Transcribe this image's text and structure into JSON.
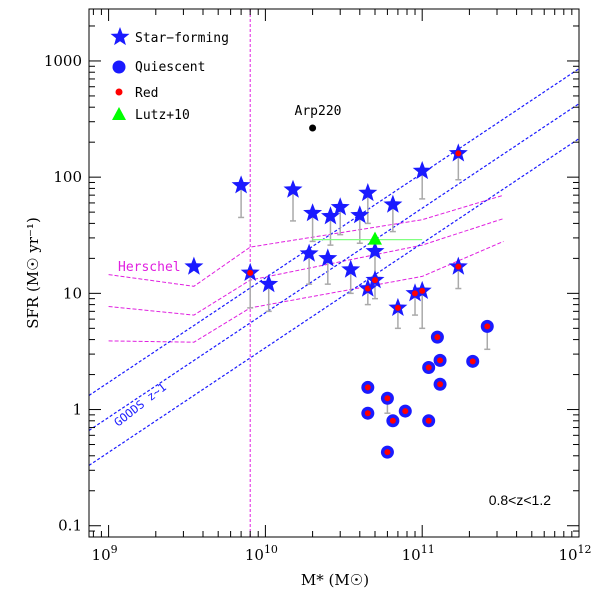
{
  "chart_data": {
    "type": "scatter",
    "xscale": "log",
    "yscale": "log",
    "xlim": [
      750000000.0,
      1000000000000.0
    ],
    "ylim": [
      0.08,
      2800
    ],
    "xlabel": "M* (M☉)",
    "ylabel": "SFR (M☉ yr⁻¹)",
    "x_ticks": [
      {
        "value": 1000000000.0,
        "base": "10",
        "exp": "9"
      },
      {
        "value": 10000000000.0,
        "base": "10",
        "exp": "10"
      },
      {
        "value": 100000000000.0,
        "base": "10",
        "exp": "11"
      },
      {
        "value": 1000000000000.0,
        "base": "10",
        "exp": "12"
      }
    ],
    "y_ticks": [
      {
        "value": 0.1,
        "label": "0.1"
      },
      {
        "value": 1,
        "label": "1"
      },
      {
        "value": 10,
        "label": "10"
      },
      {
        "value": 100,
        "label": "100"
      },
      {
        "value": 1000,
        "label": "1000"
      }
    ],
    "redshift_label": "0.8<z<1.2",
    "legend": [
      {
        "label": "Star−forming",
        "marker": "star",
        "color": "#1a1aff"
      },
      {
        "label": "Quiescent",
        "marker": "circle",
        "color": "#1a1aff"
      },
      {
        "label": "Red",
        "marker": "dot",
        "color": "#ff0000"
      },
      {
        "label": "Lutz+10",
        "marker": "triangle",
        "color": "#00ff00"
      }
    ],
    "annotations": {
      "arp220": {
        "label": "Arp220",
        "x": 20000000000.0,
        "y": 265
      },
      "herschel": {
        "label": "Herschel",
        "color": "#e020e0"
      },
      "goods": {
        "label": "GOODS z~1",
        "color": "#1a1aff"
      }
    },
    "series": [
      {
        "name": "Star-forming",
        "points": [
          {
            "x": 3500000000.0,
            "y": 17,
            "red": false,
            "low": null
          },
          {
            "x": 7000000000.0,
            "y": 85,
            "red": false,
            "low": 45
          },
          {
            "x": 8000000000.0,
            "y": 15,
            "red": true,
            "low": 7.5
          },
          {
            "x": 10500000000.0,
            "y": 12,
            "red": false,
            "low": 7
          },
          {
            "x": 15000000000.0,
            "y": 78,
            "red": false,
            "low": 42
          },
          {
            "x": 19000000000.0,
            "y": 22,
            "red": false,
            "low": 12
          },
          {
            "x": 20000000000.0,
            "y": 49,
            "red": false,
            "low": 28
          },
          {
            "x": 25000000000.0,
            "y": 20,
            "red": false,
            "low": 12
          },
          {
            "x": 26000000000.0,
            "y": 46,
            "red": false,
            "low": 26
          },
          {
            "x": 30000000000.0,
            "y": 55,
            "red": false,
            "low": 32
          },
          {
            "x": 35000000000.0,
            "y": 16,
            "red": false,
            "low": 10
          },
          {
            "x": 40000000000.0,
            "y": 47,
            "red": false,
            "low": 27
          },
          {
            "x": 45000000000.0,
            "y": 73,
            "red": false,
            "low": 40
          },
          {
            "x": 45000000000.0,
            "y": 11,
            "red": true,
            "low": 8
          },
          {
            "x": 50000000000.0,
            "y": 23,
            "red": false,
            "low": 14
          },
          {
            "x": 50000000000.0,
            "y": 13,
            "red": true,
            "low": 9
          },
          {
            "x": 65000000000.0,
            "y": 58,
            "red": false,
            "low": 34
          },
          {
            "x": 70000000000.0,
            "y": 7.5,
            "red": true,
            "low": 5
          },
          {
            "x": 90000000000.0,
            "y": 10,
            "red": true,
            "low": 6.5
          },
          {
            "x": 100000000000.0,
            "y": 113,
            "red": false,
            "low": 65
          },
          {
            "x": 100000000000.0,
            "y": 10.5,
            "red": true,
            "low": 5
          },
          {
            "x": 170000000000.0,
            "y": 160,
            "red": true,
            "low": 95
          },
          {
            "x": 170000000000.0,
            "y": 17,
            "red": true,
            "low": 11
          }
        ]
      },
      {
        "name": "Quiescent",
        "points": [
          {
            "x": 45000000000.0,
            "y": 1.55,
            "red": true,
            "low": null
          },
          {
            "x": 45000000000.0,
            "y": 0.93,
            "red": true,
            "low": null
          },
          {
            "x": 60000000000.0,
            "y": 1.25,
            "red": true,
            "low": 0.93
          },
          {
            "x": 60000000000.0,
            "y": 0.43,
            "red": true,
            "low": null
          },
          {
            "x": 65000000000.0,
            "y": 0.8,
            "red": true,
            "low": null
          },
          {
            "x": 78000000000.0,
            "y": 0.97,
            "red": true,
            "low": null
          },
          {
            "x": 110000000000.0,
            "y": 2.3,
            "red": true,
            "low": null
          },
          {
            "x": 110000000000.0,
            "y": 0.8,
            "red": true,
            "low": null
          },
          {
            "x": 125000000000.0,
            "y": 4.2,
            "red": true,
            "low": null
          },
          {
            "x": 130000000000.0,
            "y": 2.65,
            "red": true,
            "low": null
          },
          {
            "x": 130000000000.0,
            "y": 1.65,
            "red": true,
            "low": null
          },
          {
            "x": 210000000000.0,
            "y": 2.6,
            "red": true,
            "low": null
          },
          {
            "x": 260000000000.0,
            "y": 5.2,
            "red": true,
            "low": 3.3
          }
        ]
      },
      {
        "name": "Lutz+10",
        "points": [
          {
            "x": 50000000000.0,
            "y": 29,
            "xlow": 20000000000.0,
            "xhigh": 100000000000.0
          }
        ]
      }
    ],
    "main_sequence": {
      "slope": 0.9,
      "norm_at_1e10": 6.8,
      "offsets": [
        0.5,
        1,
        2
      ],
      "xrange": [
        750000000.0,
        1000000000000.0
      ],
      "color": "#1a1aff"
    },
    "herschel_limits": [
      {
        "x": [
          1000000000.0,
          3500000000.0,
          8000000000.0,
          100000000000.0,
          330000000000.0
        ],
        "y": [
          14.5,
          11.5,
          25,
          43,
          70
        ]
      },
      {
        "x": [
          1000000000.0,
          3500000000.0,
          8000000000.0,
          100000000000.0,
          330000000000.0
        ],
        "y": [
          7.7,
          6.5,
          13,
          26,
          44
        ]
      },
      {
        "x": [
          1000000000.0,
          3500000000.0,
          8000000000.0,
          100000000000.0,
          330000000000.0
        ],
        "y": [
          3.9,
          3.8,
          7.5,
          14,
          28
        ]
      }
    ],
    "mass_limit_x": 8000000000.0
  }
}
